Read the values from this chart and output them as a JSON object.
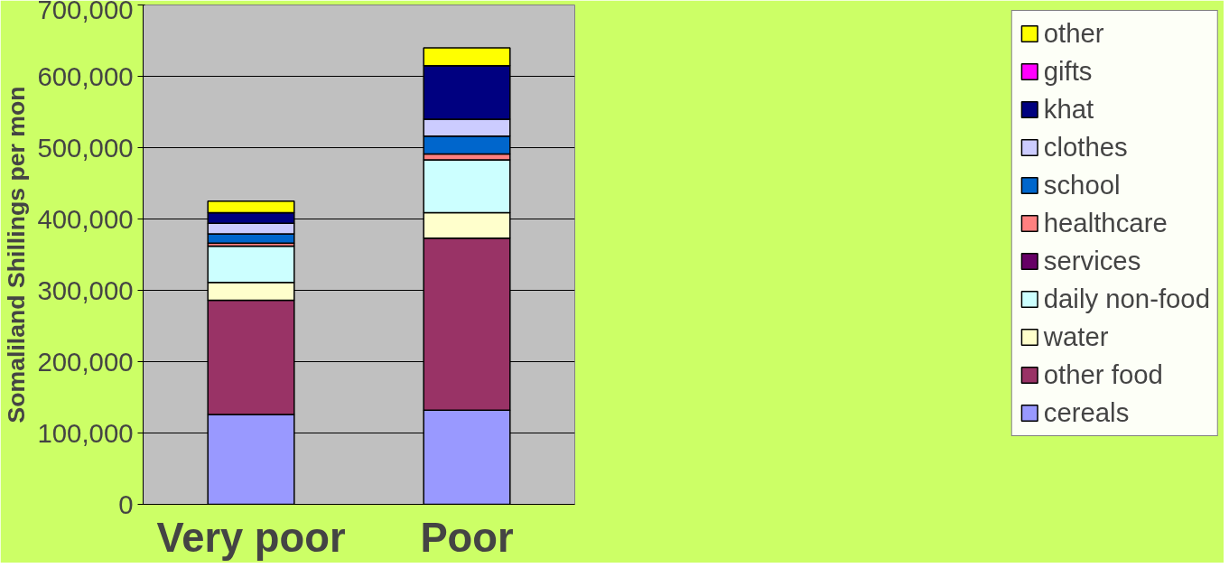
{
  "chart_data": {
    "type": "bar",
    "stacked": true,
    "ylabel": "Somaliland Shillings per mon",
    "categories": [
      "Very poor",
      "Poor"
    ],
    "series": [
      {
        "name": "cereals",
        "color": "#9999ff",
        "values": [
          126000,
          132000
        ]
      },
      {
        "name": "other food",
        "color": "#993366",
        "values": [
          160000,
          241000
        ]
      },
      {
        "name": "water",
        "color": "#ffffcc",
        "values": [
          25000,
          36000
        ]
      },
      {
        "name": "daily non-food",
        "color": "#ccffff",
        "values": [
          51000,
          74000
        ]
      },
      {
        "name": "services",
        "color": "#660066",
        "values": [
          0,
          0
        ]
      },
      {
        "name": "healthcare",
        "color": "#ff8080",
        "values": [
          4000,
          8000
        ]
      },
      {
        "name": "school",
        "color": "#0066cc",
        "values": [
          13000,
          25000
        ]
      },
      {
        "name": "clothes",
        "color": "#ccccff",
        "values": [
          15000,
          24000
        ]
      },
      {
        "name": "khat",
        "color": "#000080",
        "values": [
          15000,
          75000
        ]
      },
      {
        "name": "gifts",
        "color": "#ff00ff",
        "values": [
          0,
          0
        ]
      },
      {
        "name": "other",
        "color": "#ffff00",
        "values": [
          16000,
          25000
        ]
      }
    ],
    "ylim": [
      0,
      700000
    ],
    "yticks": [
      {
        "value": 0,
        "label": "0"
      },
      {
        "value": 100000,
        "label": "100,000"
      },
      {
        "value": 200000,
        "label": "200,000"
      },
      {
        "value": 300000,
        "label": "300,000"
      },
      {
        "value": 400000,
        "label": "400,000"
      },
      {
        "value": 500000,
        "label": "500,000"
      },
      {
        "value": 600000,
        "label": "600,000"
      },
      {
        "value": 700000,
        "label": "700,000"
      }
    ],
    "grid": "y",
    "legend": "right"
  }
}
